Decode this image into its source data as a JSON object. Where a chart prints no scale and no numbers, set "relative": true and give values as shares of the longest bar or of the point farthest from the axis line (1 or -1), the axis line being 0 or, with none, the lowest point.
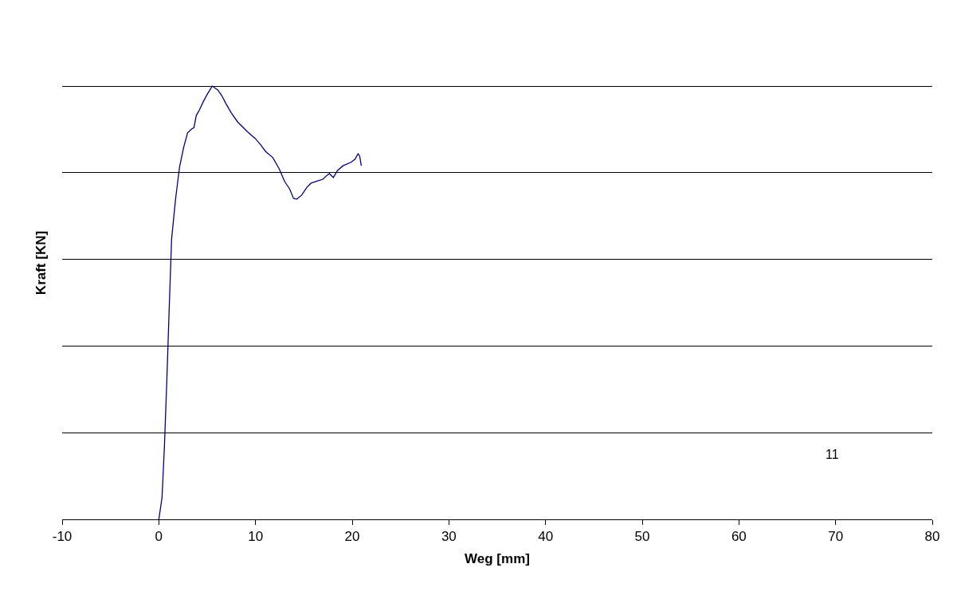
{
  "chart_data": {
    "type": "line",
    "relative": true,
    "xlabel": "Weg [mm]",
    "ylabel": "Kraft [KN]",
    "xlim": [
      -10,
      80
    ],
    "xticks": [
      -10,
      0,
      10,
      20,
      30,
      40,
      50,
      60,
      70,
      80
    ],
    "grid": "y",
    "marker": "none",
    "line_style": "solid",
    "annotations": [
      "11"
    ],
    "series": [
      {
        "color": "#000080",
        "x": [
          0,
          0.33,
          0.58,
          0.82,
          1.07,
          1.32,
          1.73,
          2.14,
          2.56,
          2.97,
          3.38,
          3.63,
          3.87,
          4.2,
          4.62,
          5.03,
          5.52,
          6.1,
          6.51,
          6.93,
          7.5,
          8.16,
          9.15,
          9.98,
          10.55,
          11.05,
          11.79,
          12.45,
          13.03,
          13.52,
          13.93,
          14.26,
          14.76,
          15.33,
          15.75,
          16.41,
          16.98,
          17.39,
          17.64,
          18.05,
          18.47,
          19.04,
          19.87,
          20.28,
          20.61,
          20.78,
          20.94
        ],
        "values": [
          0,
          0.05,
          0.169,
          0.316,
          0.485,
          0.647,
          0.739,
          0.813,
          0.858,
          0.892,
          0.901,
          0.904,
          0.932,
          0.945,
          0.965,
          0.982,
          1,
          0.991,
          0.978,
          0.96,
          0.938,
          0.917,
          0.895,
          0.879,
          0.864,
          0.849,
          0.835,
          0.809,
          0.779,
          0.763,
          0.741,
          0.739,
          0.748,
          0.767,
          0.776,
          0.781,
          0.785,
          0.794,
          0.798,
          0.789,
          0.805,
          0.816,
          0.824,
          0.831,
          0.844,
          0.838,
          0.816
        ]
      }
    ]
  }
}
